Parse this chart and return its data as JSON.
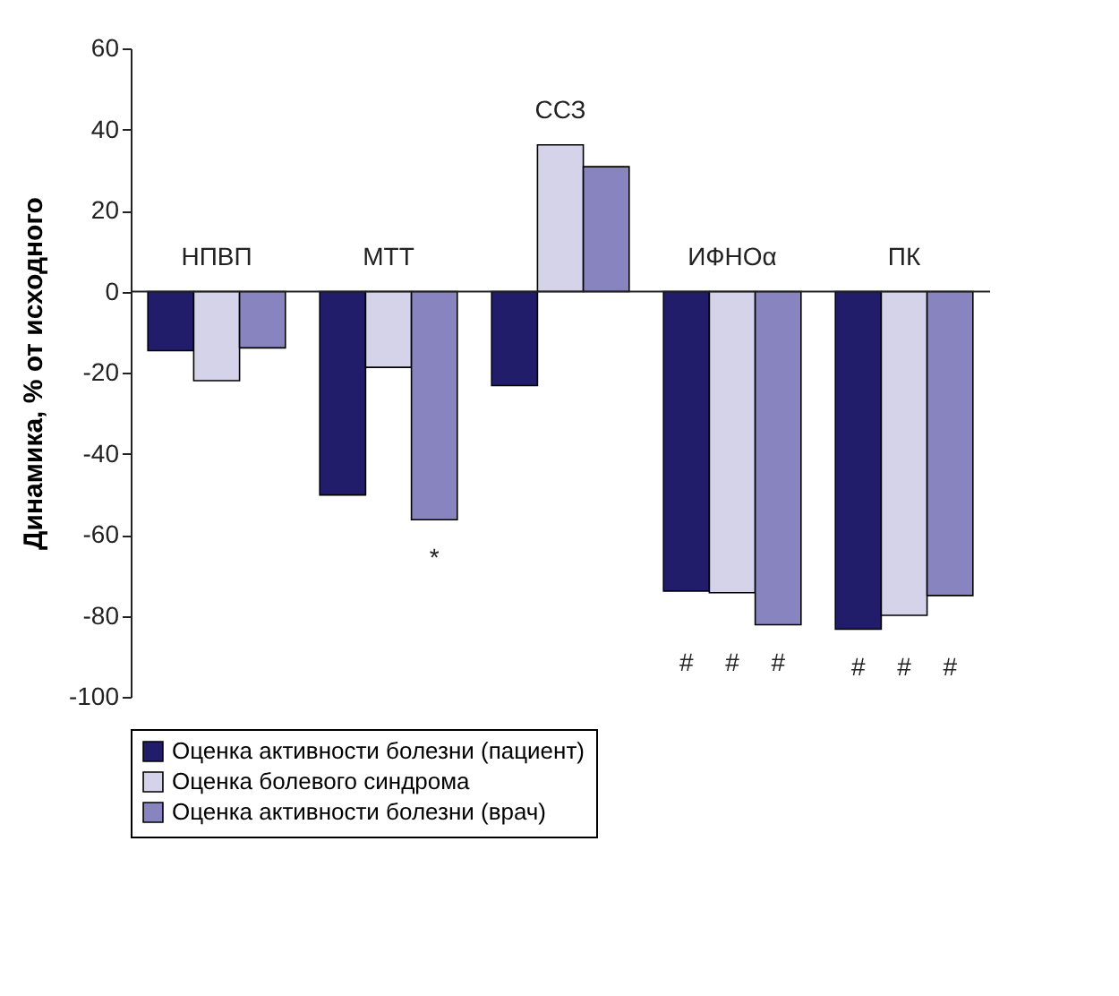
{
  "chart_data": {
    "type": "bar",
    "ylabel": "Динамика, % от исходного",
    "categories": [
      "НПВП",
      "МТТ",
      "ССЗ",
      "ИФНОα",
      "ПК"
    ],
    "series": [
      {
        "name": "Оценка активности болезни (пациент)",
        "color": "#211d6b",
        "values": [
          -14.6,
          -50.2,
          -23.2,
          -73.9,
          -83.3
        ]
      },
      {
        "name": "Оценка болевого синдрома",
        "color": "#d5d3e9",
        "values": [
          -22,
          -18.7,
          36.2,
          -74.3,
          -79.9
        ]
      },
      {
        "name": "Оценка активности болезни (врач)",
        "color": "#8884bf",
        "values": [
          -13.9,
          -56.3,
          30.8,
          -82.2,
          -75
        ]
      }
    ],
    "ylim": [
      -100,
      60
    ],
    "yticks": [
      -100,
      -80,
      -60,
      -40,
      -20,
      0,
      20,
      40,
      60
    ],
    "grid": false,
    "legend": "bottom",
    "annotations": [
      "*",
      "#",
      "#",
      "#",
      "#",
      "#",
      "#"
    ]
  }
}
